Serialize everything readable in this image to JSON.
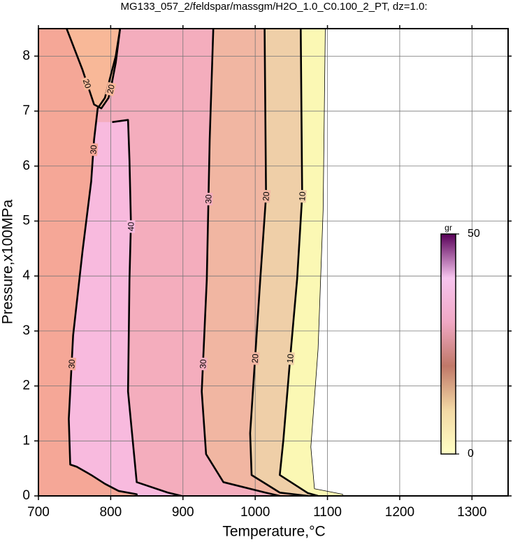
{
  "chart_data": {
    "type": "contour",
    "title": "MG133_057_2/feldspar/massgm/H2O_1.0_C0.100_2_PT, dz=1.0:",
    "xlabel": "Temperature,°C",
    "ylabel": "Pressure,x100MPa",
    "xlim": [
      700,
      1350
    ],
    "ylim": [
      0,
      8.5
    ],
    "xticks": [
      700,
      800,
      900,
      1000,
      1100,
      1200,
      1300
    ],
    "yticks": [
      0,
      1,
      2,
      3,
      4,
      5,
      6,
      7,
      8
    ],
    "grid": true,
    "contours": [
      {
        "level": 0,
        "color": "#fbf8b4",
        "x": [
          1121,
          1121,
          1082,
          1077,
          1087,
          1094,
          1097
        ],
        "y": [
          0,
          0.03,
          0.13,
          0.89,
          2.67,
          5.2,
          8.5
        ]
      },
      {
        "level": 10,
        "color": "#efcfa8",
        "x": [
          1087,
          1073,
          1034,
          1039,
          1049,
          1058,
          1065,
          1063
        ],
        "y": [
          0,
          0.05,
          0.38,
          1.02,
          2.6,
          3.94,
          5.46,
          8.5
        ]
      },
      {
        "level": 20,
        "color": "#f1b6a2",
        "x": [
          1073,
          1034,
          995,
          993,
          1000,
          1007,
          1015,
          1013
        ],
        "y": [
          0,
          0.06,
          0.38,
          1.14,
          2.54,
          3.94,
          5.46,
          8.5
        ]
      },
      {
        "level": 30,
        "color": "#f4adbd",
        "x": [
          1034,
          1014,
          956,
          932,
          926,
          933,
          937,
          942
        ],
        "y": [
          0,
          0.06,
          0.25,
          0.76,
          1.9,
          3.94,
          6.48,
          8.5
        ]
      },
      {
        "level": 40,
        "color": "#f8bade",
        "x": [
          898,
          879,
          836,
          824,
          826,
          828,
          826,
          824,
          802
        ],
        "y": [
          0,
          0.06,
          0.25,
          1.9,
          3.94,
          4.96,
          6.1,
          6.84,
          6.8
        ]
      },
      {
        "level": 30,
        "color": "#f5a797",
        "x": [
          836,
          836,
          811,
          792,
          773,
          753,
          744,
          742,
          748,
          761,
          773,
          777,
          782,
          792,
          807,
          813
        ],
        "y": [
          0,
          0.03,
          0.09,
          0.22,
          0.38,
          0.53,
          0.57,
          1.4,
          2.92,
          4.45,
          5.72,
          6.48,
          7.05,
          7.24,
          8.0,
          8.5
        ]
      },
      {
        "level": 20,
        "color": "#f8b898",
        "x": [
          739,
          761,
          777,
          787,
          797,
          800,
          807,
          813
        ],
        "y": [
          8.5,
          7.75,
          7.12,
          7.05,
          7.24,
          7.4,
          7.88,
          8.5
        ]
      }
    ],
    "colorbar": {
      "label": "gr",
      "lim": [
        0,
        50
      ],
      "ticks": [
        0,
        50
      ],
      "colors": [
        "#ffffc4",
        "#f2d8a4",
        "#c07868",
        "#f0a8c4",
        "#f6c4ee",
        "#580058"
      ]
    }
  }
}
